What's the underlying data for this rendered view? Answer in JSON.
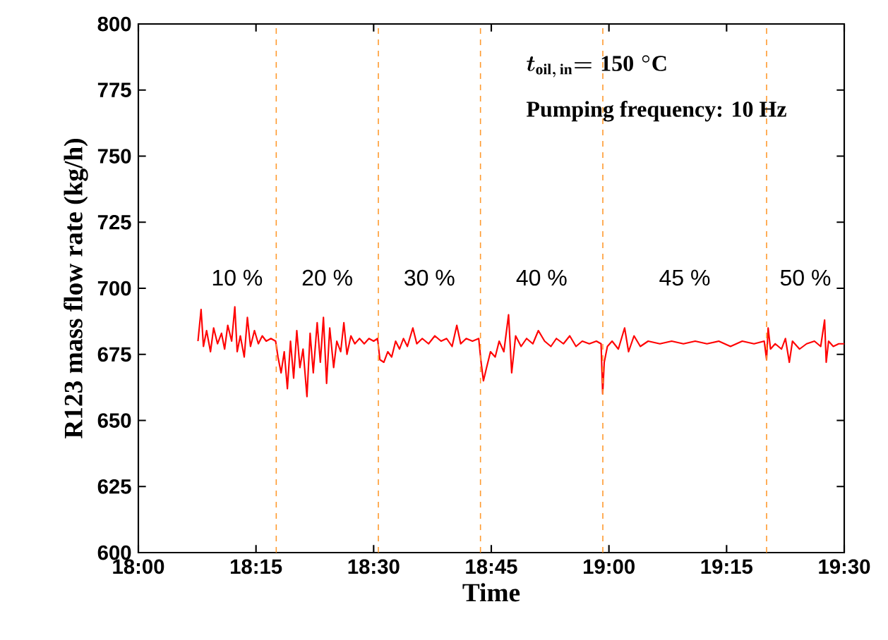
{
  "chart_data": {
    "type": "line",
    "xlabel": "Time",
    "ylabel": "R123 mass flow rate (kg/h)",
    "xlim": [
      18,
      19.5
    ],
    "ylim": [
      600,
      800
    ],
    "xticks": [
      {
        "value": 18,
        "label": "18:00"
      },
      {
        "value": 18.25,
        "label": "18:15"
      },
      {
        "value": 18.5,
        "label": "18:30"
      },
      {
        "value": 18.75,
        "label": "18:45"
      },
      {
        "value": 19,
        "label": "19:00"
      },
      {
        "value": 19.25,
        "label": "19:15"
      },
      {
        "value": 19.5,
        "label": "19:30"
      }
    ],
    "yticks": [
      600,
      625,
      650,
      675,
      700,
      725,
      750,
      775,
      800
    ],
    "grid": false,
    "marker": "none",
    "line_style": "solid",
    "series": [
      {
        "color": "#ff0000",
        "x": [
          18.1267,
          18.1333,
          18.1383,
          18.145,
          18.1533,
          18.16,
          18.1683,
          18.1767,
          18.1833,
          18.19,
          18.1983,
          18.205,
          18.21,
          18.2167,
          18.225,
          18.2317,
          18.2383,
          18.2467,
          18.255,
          18.2633,
          18.2717,
          18.2817,
          18.2917,
          18.2967,
          18.3033,
          18.31,
          18.3167,
          18.3233,
          18.33,
          18.3367,
          18.3433,
          18.35,
          18.3583,
          18.365,
          18.3717,
          18.38,
          18.3867,
          18.3933,
          18.4,
          18.4067,
          18.415,
          18.4217,
          18.43,
          18.4367,
          18.4433,
          18.4517,
          18.46,
          18.47,
          18.48,
          18.49,
          18.5,
          18.5083,
          18.5133,
          18.5217,
          18.53,
          18.5383,
          18.5467,
          18.555,
          18.5633,
          18.5717,
          18.5833,
          18.5917,
          18.6033,
          18.6167,
          18.63,
          18.6433,
          18.655,
          18.6667,
          18.6767,
          18.685,
          18.6967,
          18.71,
          18.7233,
          18.7283,
          18.7333,
          18.74,
          18.7483,
          18.7583,
          18.7667,
          18.7767,
          18.7867,
          18.7933,
          18.8017,
          18.8133,
          18.825,
          18.8383,
          18.85,
          18.8633,
          18.8767,
          18.8883,
          18.9033,
          18.9167,
          18.93,
          18.9433,
          18.9583,
          18.9733,
          18.9833,
          18.9867,
          18.99,
          18.9967,
          19.0067,
          19.02,
          19.0333,
          19.0417,
          19.0533,
          19.0667,
          19.0833,
          19.1083,
          19.1333,
          19.1583,
          19.1833,
          19.2083,
          19.2333,
          19.2583,
          19.2833,
          19.3083,
          19.33,
          19.335,
          19.3383,
          19.3433,
          19.3533,
          19.3667,
          19.375,
          19.3833,
          19.39,
          19.405,
          19.42,
          19.4367,
          19.45,
          19.4583,
          19.4617,
          19.4667,
          19.4767,
          19.4883,
          19.5
        ],
        "values": [
          680,
          692,
          678,
          684,
          676,
          685,
          679,
          683,
          677,
          686,
          680,
          693,
          676,
          682,
          674,
          689,
          678,
          684,
          679,
          682,
          680,
          681,
          680,
          674,
          668,
          676,
          662,
          680,
          666,
          684,
          670,
          677,
          659,
          683,
          668,
          687,
          672,
          689,
          664,
          685,
          670,
          680,
          676,
          687,
          675,
          682,
          679,
          681,
          679,
          681,
          680,
          681,
          673,
          672,
          676,
          674,
          680,
          677,
          681,
          678,
          685,
          679,
          681,
          679,
          682,
          680,
          681,
          678,
          686,
          679,
          681,
          680,
          681,
          672,
          665,
          670,
          676,
          674,
          680,
          676,
          690,
          668,
          682,
          678,
          681,
          679,
          684,
          680,
          678,
          681,
          679,
          682,
          678,
          680,
          679,
          680,
          679,
          660,
          672,
          678,
          680,
          677,
          685,
          676,
          682,
          678,
          680,
          679,
          680,
          679,
          680,
          679,
          680,
          678,
          680,
          679,
          680,
          673,
          685,
          677,
          679,
          677,
          681,
          672,
          680,
          677,
          679,
          680,
          678,
          688,
          672,
          680,
          678,
          679,
          679
        ]
      }
    ],
    "ref_lines": [
      {
        "axis": "x",
        "value": 18.293,
        "color": "#ff9a2e",
        "line_style": "dashed"
      },
      {
        "axis": "x",
        "value": 18.51,
        "color": "#ff9a2e",
        "line_style": "dashed"
      },
      {
        "axis": "x",
        "value": 18.727,
        "color": "#ff9a2e",
        "line_style": "dashed"
      },
      {
        "axis": "x",
        "value": 18.987,
        "color": "#ff9a2e",
        "line_style": "dashed"
      },
      {
        "axis": "x",
        "value": 19.335,
        "color": "#ff9a2e",
        "line_style": "dashed"
      }
    ],
    "annotations": [
      "t_{\\mathrm{oil,\\,in}}\\mathrm{=150\\;^{\\circ}C}",
      "Pumping frequency: 10 Hz",
      "10 %",
      "20 %",
      "30 %",
      "40 %",
      "45 %",
      "50 %"
    ]
  }
}
